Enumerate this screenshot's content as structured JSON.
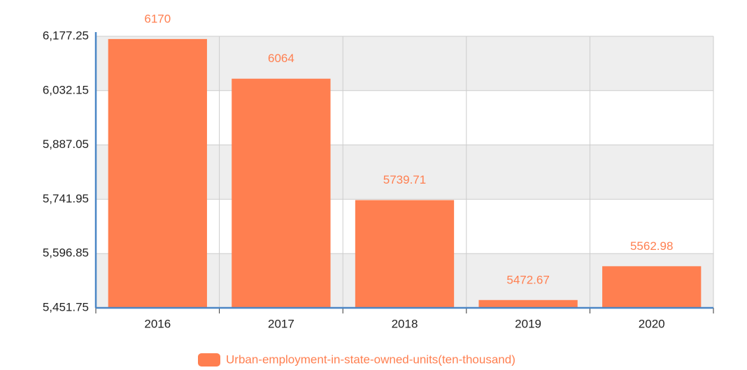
{
  "chart_data": {
    "type": "bar",
    "categories": [
      "2016",
      "2017",
      "2018",
      "2019",
      "2020"
    ],
    "series": [
      {
        "name": "Urban-employment-in-state-owned-units(ten-thousand)",
        "color": "#ff7f50",
        "values": [
          6170,
          6064,
          5739.71,
          5472.67,
          5562.98
        ]
      }
    ],
    "ylim": [
      5451.75,
      6177.25
    ],
    "yticks": [
      {
        "value": 5451.75,
        "label": "5,451.75"
      },
      {
        "value": 5596.85,
        "label": "5,596.85"
      },
      {
        "value": 5741.95,
        "label": "5,741.95"
      },
      {
        "value": 5887.05,
        "label": "5,887.05"
      },
      {
        "value": 6032.15,
        "label": "6,032.15"
      },
      {
        "value": 6177.25,
        "label": "6,177.25"
      }
    ],
    "grid": true,
    "legend": "bottom"
  }
}
